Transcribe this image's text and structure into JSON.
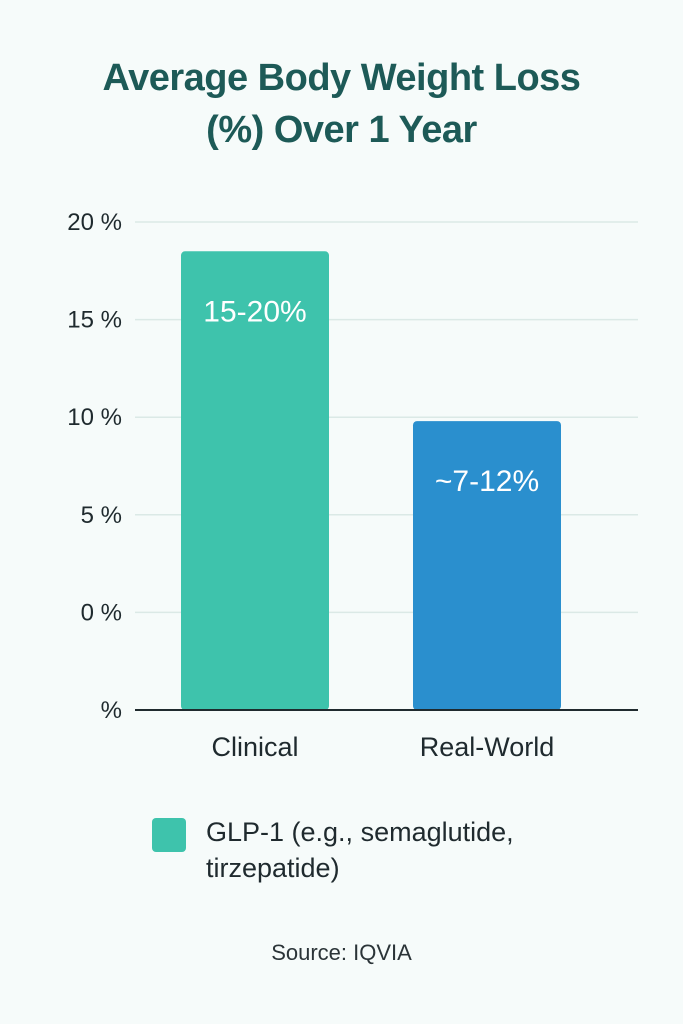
{
  "chart_data": {
    "type": "bar",
    "title_lines": [
      "Average Body Weight Loss",
      "(%) Over 1 Year"
    ],
    "categories": [
      "Clinical",
      "Real-World"
    ],
    "series": [
      {
        "name": "GLP-1 (e.g., semaglutide, tirzepatide)",
        "values": [
          18.5,
          9.8
        ],
        "bar_labels": [
          "15-20%",
          "~7-12%"
        ],
        "colors": [
          "#3ec3ac",
          "#2a8fce"
        ]
      }
    ],
    "y_ticks": [
      {
        "value": 20,
        "label": "20 %"
      },
      {
        "value": 15,
        "label": "15 %"
      },
      {
        "value": 10,
        "label": "10 %"
      },
      {
        "value": 5,
        "label": "5 %"
      },
      {
        "value": 0,
        "label": "0 %"
      },
      {
        "value": -5,
        "label": "%"
      }
    ],
    "ylim": [
      -5,
      20
    ],
    "grid": true,
    "legend_position": "bottom",
    "source": "Source: IQVIA"
  }
}
